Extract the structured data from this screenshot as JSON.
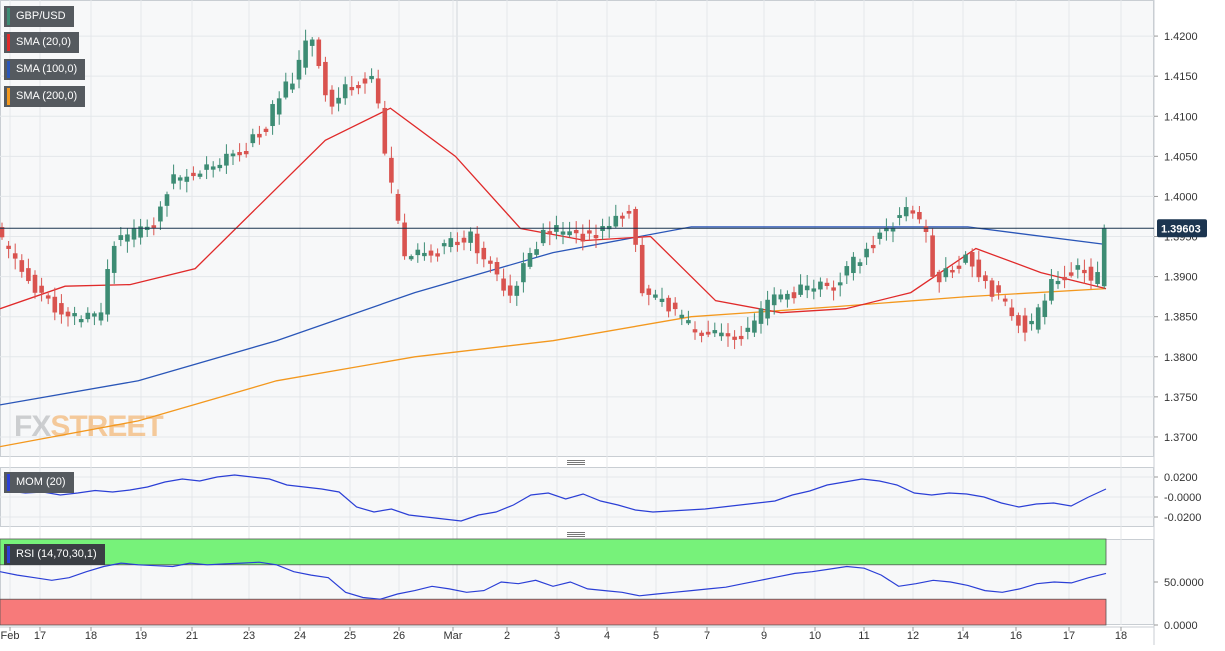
{
  "colors": {
    "bull": "#3d8c74",
    "bear": "#d9534f",
    "sma20": "#e02a2a",
    "sma100": "#2a56b8",
    "sma200": "#f3981e",
    "indicator": "#2b3fd6",
    "rsi_over": "#77f27a",
    "rsi_under": "#f77a7a",
    "price_tag_bg": "#1c3550"
  },
  "legend": {
    "symbol": "GBP/USD",
    "sma20": "SMA (20,0)",
    "sma100": "SMA (100,0)",
    "sma200": "SMA (200,0)",
    "mom": "MOM (20)",
    "rsi": "RSI (14,70,30,1)"
  },
  "watermark": {
    "fx": "FX",
    "street": "STREET"
  },
  "current_price": "1.39603",
  "chart_data": [
    {
      "type": "candlestick",
      "title": "GBP/USD",
      "ylim": [
        1.3675,
        1.4245
      ],
      "yticks": [
        "1.3700",
        "1.3750",
        "1.3800",
        "1.3850",
        "1.3900",
        "1.3950",
        "1.4000",
        "1.4050",
        "1.4100",
        "1.4150",
        "1.4200"
      ],
      "xticks": [
        "Feb",
        "17",
        "18",
        "19",
        "21",
        "23",
        "24",
        "25",
        "26",
        "Mar",
        "2",
        "3",
        "4",
        "5",
        "7",
        "9",
        "10",
        "11",
        "12",
        "14",
        "16",
        "17",
        "18"
      ],
      "series_names": [
        "SMA (20,0)",
        "SMA (100,0)",
        "SMA (200,0)"
      ],
      "last_price": 1.39603,
      "sma20_levels": [
        1.386,
        1.3888,
        1.389,
        1.391,
        1.399,
        1.407,
        1.411,
        1.405,
        1.396,
        1.3945,
        1.395,
        1.387,
        1.3855,
        1.386,
        1.388,
        1.3935,
        1.3905,
        1.3885
      ],
      "sma100_levels": [
        1.374,
        1.377,
        1.382,
        1.388,
        1.393,
        1.3962,
        1.3962,
        1.3962,
        1.394
      ],
      "sma200_levels": [
        1.3688,
        1.372,
        1.377,
        1.38,
        1.382,
        1.385,
        1.3862,
        1.3875,
        1.3885
      ]
    },
    {
      "type": "line",
      "title": "MOM (20)",
      "ylim": [
        -0.03,
        0.03
      ],
      "yticks": [
        "0.0200",
        "-0.0000",
        "-0.0200"
      ],
      "values": [
        0.006,
        0.004,
        0.005,
        0.002,
        0.004,
        0.0065,
        0.005,
        0.007,
        0.01,
        0.015,
        0.018,
        0.016,
        0.02,
        0.022,
        0.02,
        0.018,
        0.012,
        0.01,
        0.008,
        0.005,
        -0.01,
        -0.015,
        -0.012,
        -0.018,
        -0.02,
        -0.022,
        -0.024,
        -0.018,
        -0.015,
        -0.008,
        0.002,
        0.004,
        -0.002,
        0.003,
        -0.004,
        -0.008,
        -0.013,
        -0.015,
        -0.014,
        -0.013,
        -0.012,
        -0.01,
        -0.008,
        -0.006,
        -0.004,
        0.002,
        0.006,
        0.012,
        0.015,
        0.018,
        0.016,
        0.012,
        0.004,
        0.002,
        0.004,
        0.003,
        0.0,
        -0.006,
        -0.01,
        -0.007,
        -0.006,
        -0.009,
        0.0,
        0.008
      ]
    },
    {
      "type": "line",
      "title": "RSI (14,70,30,1)",
      "ylim": [
        0,
        100
      ],
      "yticks": [
        "50.0000",
        "0.0000"
      ],
      "levels": [
        70,
        30
      ],
      "values": [
        62,
        58,
        55,
        52,
        55,
        62,
        68,
        72,
        70,
        69,
        68,
        72,
        70,
        71,
        72,
        73,
        70,
        62,
        58,
        55,
        38,
        32,
        30,
        36,
        40,
        45,
        42,
        38,
        40,
        50,
        48,
        52,
        45,
        50,
        42,
        40,
        38,
        34,
        36,
        38,
        40,
        42,
        44,
        48,
        52,
        56,
        60,
        62,
        65,
        68,
        66,
        58,
        45,
        48,
        52,
        50,
        46,
        40,
        38,
        42,
        48,
        50,
        49,
        55,
        60
      ]
    }
  ]
}
